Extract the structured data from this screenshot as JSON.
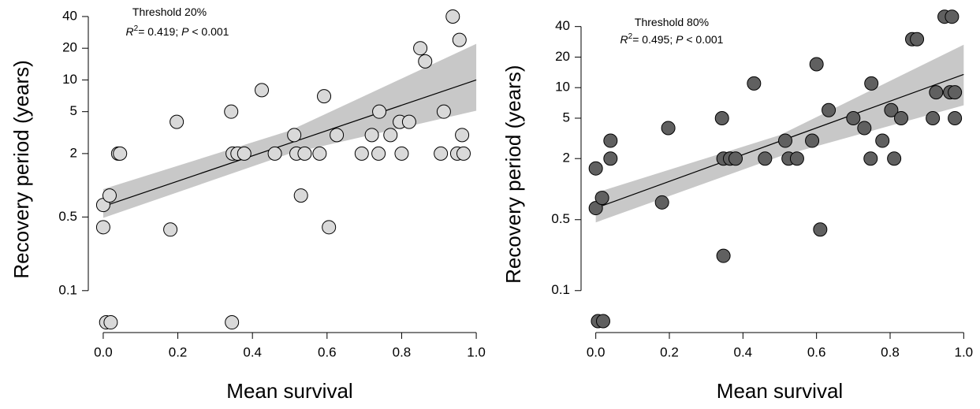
{
  "chart_data": [
    {
      "type": "scatter",
      "annotation": "Threshold 20%",
      "stats": [
        "R",
        "2",
        "= 0.419; ",
        "P",
        " < 0.001"
      ],
      "xlabel": "Mean survival",
      "ylabel": "Recovery period (years)",
      "log_y": true,
      "color": "#d9d9d9",
      "x": [
        0.0,
        0.0,
        0.017,
        0.008,
        0.02,
        0.04,
        0.045,
        0.18,
        0.197,
        0.343,
        0.345,
        0.347,
        0.36,
        0.378,
        0.425,
        0.46,
        0.512,
        0.518,
        0.53,
        0.54,
        0.58,
        0.592,
        0.605,
        0.626,
        0.693,
        0.72,
        0.738,
        0.74,
        0.77,
        0.795,
        0.8,
        0.82,
        0.85,
        0.863,
        0.905,
        0.913,
        0.937,
        0.949,
        0.955,
        0.962,
        0.966
      ],
      "values": [
        0.65,
        0.4,
        0.8,
        0.05,
        0.05,
        2,
        2,
        0.38,
        4,
        5,
        0.05,
        2,
        2,
        2,
        8,
        2,
        3,
        2,
        0.8,
        2,
        2,
        7,
        0.4,
        3,
        2,
        3,
        2,
        5,
        3,
        4,
        2,
        4,
        20,
        15,
        2,
        5,
        40,
        2,
        24,
        3,
        2
      ],
      "fit": {
        "x": [
          0,
          1
        ],
        "values": [
          0.63,
          10
        ]
      },
      "band": {
        "x": [
          0,
          0.5,
          1
        ],
        "upper": [
          0.92,
          3.3,
          22
        ],
        "lower": [
          0.49,
          2.0,
          5.1
        ]
      },
      "xlim": [
        -0.04,
        1.04
      ],
      "ylim": [
        0.04,
        50
      ],
      "xticks": [
        {
          "value": 0,
          "label": "0.0"
        },
        0.2,
        0.4,
        0.6,
        0.8,
        {
          "value": 1,
          "label": "1.0"
        }
      ],
      "yticks": [
        0.1,
        0.5,
        2,
        5,
        10,
        20,
        40
      ]
    },
    {
      "type": "scatter",
      "annotation": "Threshold 80%",
      "stats": [
        "R",
        "2",
        "= 0.495; ",
        "P",
        " < 0.001"
      ],
      "xlabel": "Mean survival",
      "ylabel": "Recovery period (years)",
      "log_y": true,
      "color": "#606060",
      "x": [
        0.0,
        0.0,
        0.006,
        0.02,
        0.017,
        0.04,
        0.04,
        0.18,
        0.197,
        0.343,
        0.347,
        0.347,
        0.365,
        0.38,
        0.43,
        0.46,
        0.515,
        0.524,
        0.547,
        0.588,
        0.6,
        0.61,
        0.633,
        0.7,
        0.73,
        0.749,
        0.747,
        0.779,
        0.803,
        0.811,
        0.83,
        0.86,
        0.873,
        0.916,
        0.925,
        0.948,
        0.968,
        0.963,
        0.976,
        0.976
      ],
      "values": [
        0.65,
        1.6,
        0.05,
        0.05,
        0.82,
        2,
        3,
        0.74,
        4,
        5,
        0.22,
        2,
        2,
        2,
        11,
        2,
        3,
        2,
        2,
        3,
        17,
        0.4,
        6,
        5,
        4,
        11,
        2,
        3,
        6,
        2,
        5,
        30,
        30,
        5,
        9,
        50,
        50,
        9,
        9,
        5
      ],
      "fit": {
        "x": [
          0,
          1
        ],
        "values": [
          0.65,
          13.5
        ]
      },
      "band": {
        "x": [
          0,
          0.5,
          1
        ],
        "upper": [
          0.92,
          3.4,
          26.5
        ],
        "lower": [
          0.47,
          2.1,
          6.7
        ]
      },
      "xlim": [
        -0.04,
        1.04
      ],
      "ylim": [
        0.04,
        60
      ],
      "xticks": [
        {
          "value": 0,
          "label": "0.0"
        },
        0.2,
        0.4,
        0.6,
        0.8,
        {
          "value": 1,
          "label": "1.0"
        }
      ],
      "yticks": [
        0.1,
        0.5,
        2,
        5,
        10,
        20,
        40
      ]
    }
  ]
}
